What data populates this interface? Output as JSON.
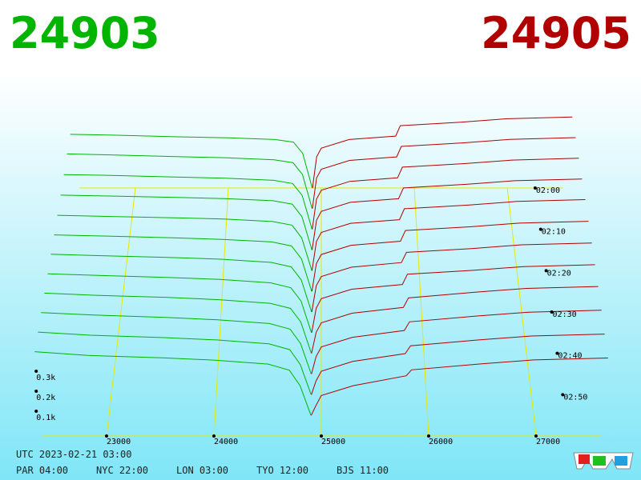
{
  "chart_data": {
    "type": "depth3d",
    "best_bid": 24903,
    "best_ask": 24905,
    "bid_color": "#00b400",
    "ask_color": "#b00000",
    "xlim": [
      22300,
      27700
    ],
    "xticks": [
      23000,
      24000,
      25000,
      26000,
      27000
    ],
    "zlim": [
      120,
      180
    ],
    "zticks": [
      {
        "value": 120,
        "label": "02:00"
      },
      {
        "value": 130,
        "label": "02:10"
      },
      {
        "value": 140,
        "label": "02:20"
      },
      {
        "value": 150,
        "label": "02:30"
      },
      {
        "value": 160,
        "label": "02:40"
      },
      {
        "value": 170,
        "label": "02:50"
      }
    ],
    "yticks": [
      {
        "value": 100,
        "label": "0.1k"
      },
      {
        "value": 200,
        "label": "0.2k"
      },
      {
        "value": 300,
        "label": "0.3k"
      }
    ],
    "bid_prices": [
      22300,
      22800,
      23500,
      24000,
      24500,
      24700,
      24800,
      24903
    ],
    "ask_prices": [
      24905,
      24950,
      25000,
      25300,
      25800,
      25850,
      26500,
      27000,
      27700
    ],
    "snapshots": [
      {
        "time": 120,
        "bids": [
          310,
          305,
          295,
          290,
          280,
          265,
          200,
          0
        ],
        "asks": [
          0,
          180,
          230,
          280,
          300,
          360,
          380,
          400,
          410
        ]
      },
      {
        "time": 125,
        "bids": [
          312,
          306,
          296,
          290,
          279,
          262,
          195,
          0
        ],
        "asks": [
          0,
          175,
          225,
          275,
          295,
          355,
          375,
          395,
          405
        ]
      },
      {
        "time": 130,
        "bids": [
          308,
          304,
          294,
          288,
          276,
          258,
          190,
          0
        ],
        "asks": [
          0,
          170,
          220,
          270,
          290,
          350,
          370,
          390,
          400
        ]
      },
      {
        "time": 135,
        "bids": [
          305,
          300,
          292,
          286,
          274,
          255,
          185,
          0
        ],
        "asks": [
          0,
          165,
          215,
          265,
          285,
          345,
          365,
          385,
          395
        ]
      },
      {
        "time": 140,
        "bids": [
          304,
          298,
          290,
          284,
          270,
          250,
          180,
          0
        ],
        "asks": [
          0,
          160,
          210,
          260,
          280,
          340,
          360,
          380,
          390
        ]
      },
      {
        "time": 145,
        "bids": [
          306,
          300,
          290,
          282,
          268,
          246,
          176,
          0
        ],
        "asks": [
          0,
          150,
          200,
          250,
          272,
          330,
          350,
          370,
          380
        ]
      },
      {
        "time": 150,
        "bids": [
          310,
          302,
          292,
          283,
          266,
          242,
          172,
          0
        ],
        "asks": [
          0,
          140,
          190,
          240,
          265,
          320,
          340,
          360,
          370
        ]
      },
      {
        "time": 155,
        "bids": [
          312,
          303,
          292,
          282,
          264,
          238,
          168,
          0
        ],
        "asks": [
          0,
          130,
          180,
          230,
          255,
          310,
          330,
          350,
          360
        ]
      },
      {
        "time": 160,
        "bids": [
          315,
          304,
          293,
          281,
          262,
          235,
          164,
          0
        ],
        "asks": [
          0,
          110,
          160,
          210,
          240,
          290,
          320,
          340,
          350
        ]
      },
      {
        "time": 165,
        "bids": [
          318,
          305,
          293,
          280,
          261,
          232,
          158,
          0
        ],
        "asks": [
          0,
          90,
          140,
          190,
          225,
          270,
          300,
          320,
          330
        ]
      },
      {
        "time": 170,
        "bids": [
          320,
          304,
          292,
          280,
          260,
          230,
          154,
          0
        ],
        "asks": [
          0,
          70,
          120,
          170,
          210,
          250,
          280,
          300,
          310
        ]
      },
      {
        "time": 175,
        "bids": [
          322,
          303,
          291,
          279,
          259,
          228,
          150,
          0
        ],
        "asks": [
          0,
          50,
          100,
          150,
          200,
          230,
          260,
          280,
          290
        ]
      }
    ]
  },
  "footer": {
    "utc": "UTC 2023-02-21 03:00",
    "clocks": [
      "PAR 04:00",
      "NYC 22:00",
      "LON 03:00",
      "TYO 12:00",
      "BJS 11:00"
    ]
  }
}
